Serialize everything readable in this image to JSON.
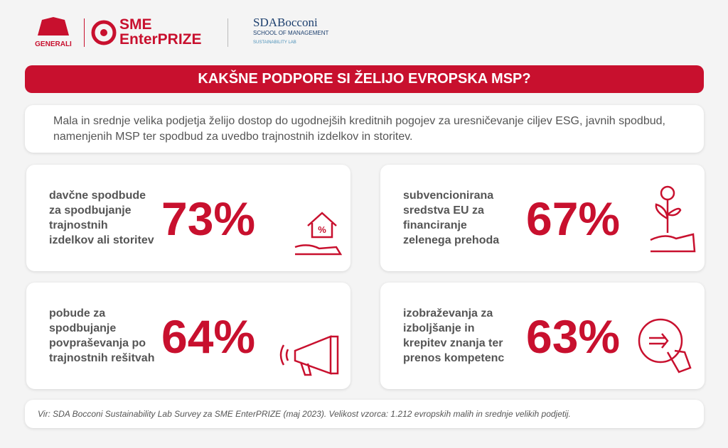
{
  "header": {
    "logos": {
      "generali": "GENERALI",
      "sme_line1": "SME",
      "sme_line2": "EnterPRIZE",
      "sda": "SDA",
      "bocconi": "Bocconi",
      "school": "SCHOOL OF MANAGEMENT",
      "lab": "SUSTAINABILITY LAB"
    },
    "title": "KAKŠNE PODPORE SI ŽELIJO EVROPSKA MSP?"
  },
  "intro": "Mala in srednje velika podjetja želijo dostop do ugodnejših kreditnih pogojev za uresničevanje ciljev ESG, javnih spodbud, namenjenih MSP ter spodbud za uvedbo trajnostnih izdelkov in storitev.",
  "cards": [
    {
      "label": "davčne spodbude za spodbujanje trajnostnih izdelkov ali storitev",
      "value": "73%"
    },
    {
      "label": "subvencionirana sredstva EU za financiranje zelenega prehoda",
      "value": "67%"
    },
    {
      "label": "pobude za spodbujanje povpraševanja po trajnostnih rešitvah",
      "value": "64%"
    },
    {
      "label": "izobraževanja za izboljšanje in krepitev znanja ter prenos kompetenc",
      "value": "63%"
    }
  ],
  "footer": "Vir: SDA Bocconi Sustainability Lab Survey za SME EnterPRIZE (maj 2023). Velikost vzorca: 1.212 evropskih malih in srednje velikih podjetij."
}
